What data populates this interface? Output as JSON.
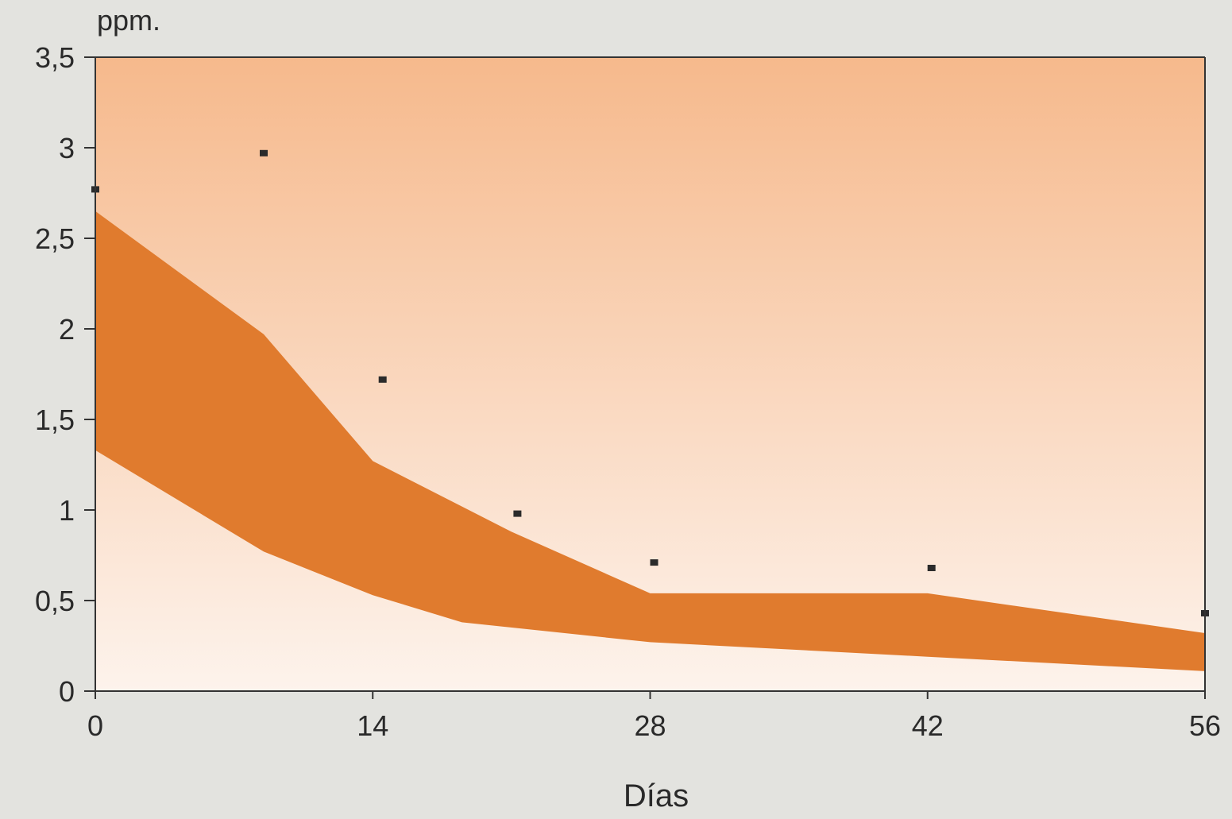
{
  "chart_data": {
    "type": "area",
    "title": "",
    "ylabel": "ppm.",
    "xlabel": "Días",
    "xlim": [
      0,
      56
    ],
    "ylim": [
      0,
      3.5
    ],
    "x_ticks": [
      0,
      14,
      28,
      42,
      56
    ],
    "x_tick_labels": [
      "0",
      "14",
      "28",
      "42",
      "56"
    ],
    "y_ticks": [
      0,
      0.5,
      1,
      1.5,
      2,
      2.5,
      3,
      3.5
    ],
    "y_tick_labels": [
      "0",
      "0,5",
      "1",
      "1,5",
      "2",
      "2,5",
      "3",
      "3,5"
    ],
    "grid": false,
    "band": {
      "upper": [
        {
          "x": 0,
          "y": 2.65
        },
        {
          "x": 8.5,
          "y": 1.97
        },
        {
          "x": 14,
          "y": 1.27
        },
        {
          "x": 21,
          "y": 0.88
        },
        {
          "x": 28,
          "y": 0.54
        },
        {
          "x": 42,
          "y": 0.54
        },
        {
          "x": 56,
          "y": 0.32
        }
      ],
      "lower": [
        {
          "x": 0,
          "y": 1.33
        },
        {
          "x": 8.5,
          "y": 0.77
        },
        {
          "x": 14,
          "y": 0.53
        },
        {
          "x": 18.5,
          "y": 0.38
        },
        {
          "x": 28,
          "y": 0.27
        },
        {
          "x": 42,
          "y": 0.19
        },
        {
          "x": 56,
          "y": 0.11
        }
      ]
    },
    "points": [
      {
        "x": 0,
        "y": 2.77
      },
      {
        "x": 8.5,
        "y": 2.97
      },
      {
        "x": 14.5,
        "y": 1.72
      },
      {
        "x": 21.3,
        "y": 0.98
      },
      {
        "x": 28.2,
        "y": 0.71
      },
      {
        "x": 42.2,
        "y": 0.68
      },
      {
        "x": 56,
        "y": 0.43
      }
    ],
    "colors": {
      "band": "#e07b2e",
      "points": "#2b2b2b",
      "plot_top": "#f6b98c",
      "plot_bottom": "#fdf3ec",
      "page": "#e3e3df",
      "axis": "#333333"
    }
  }
}
